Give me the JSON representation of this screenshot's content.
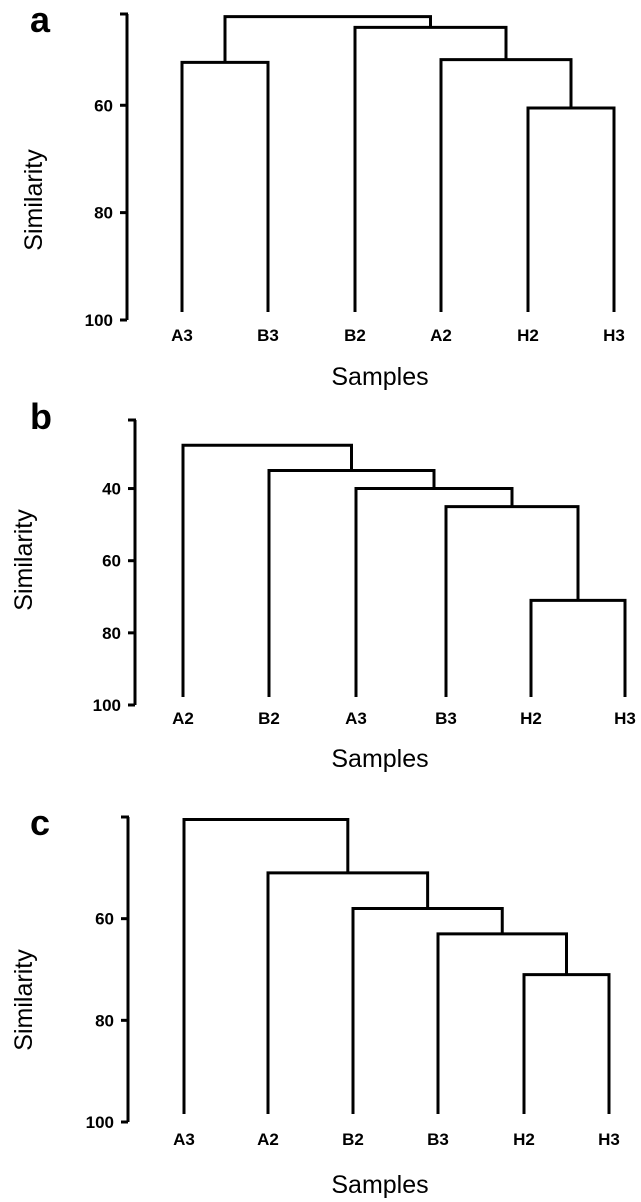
{
  "chart_data": [
    {
      "type": "dendrogram",
      "panel_label": "a",
      "xlabel": "Samples",
      "ylabel": "Similarity",
      "y_ticks": [
        "60",
        "80",
        "100"
      ],
      "y_tick_values": [
        60,
        80,
        100
      ],
      "ylim": [
        43,
        100
      ],
      "leaves": [
        "A3",
        "B3",
        "B2",
        "A2",
        "H2",
        "H3"
      ],
      "merges": [
        {
          "left": "H2",
          "right": "H3",
          "similarity": 60.5
        },
        {
          "left": "A2",
          "right": "H2-H3",
          "similarity": 51.5
        },
        {
          "left": "B2",
          "right": "A2-H2-H3",
          "similarity": 45.5
        },
        {
          "left": "A3",
          "right": "B3",
          "similarity": 52
        },
        {
          "left": "A3-B3",
          "right": "B2-A2-H2-H3",
          "similarity": 43.5
        }
      ]
    },
    {
      "type": "dendrogram",
      "panel_label": "b",
      "xlabel": "Samples",
      "ylabel": "Similarity",
      "y_ticks": [
        "40",
        "60",
        "80",
        "100"
      ],
      "y_tick_values": [
        40,
        60,
        80,
        100
      ],
      "ylim": [
        21,
        100
      ],
      "leaves": [
        "A2",
        "B2",
        "A3",
        "B3",
        "H2",
        "H3"
      ],
      "merges": [
        {
          "left": "H2",
          "right": "H3",
          "similarity": 71
        },
        {
          "left": "B3",
          "right": "H2-H3",
          "similarity": 45
        },
        {
          "left": "A3",
          "right": "B3-H2-H3",
          "similarity": 40
        },
        {
          "left": "B2",
          "right": "A3-B3-H2-H3",
          "similarity": 35
        },
        {
          "left": "A2",
          "right": "B2-A3-B3-H2-H3",
          "similarity": 28
        }
      ]
    },
    {
      "type": "dendrogram",
      "panel_label": "c",
      "xlabel": "Samples",
      "ylabel": "Similarity",
      "y_ticks": [
        "60",
        "80",
        "100"
      ],
      "y_tick_values": [
        60,
        80,
        100
      ],
      "ylim": [
        40,
        100
      ],
      "leaves": [
        "A3",
        "A2",
        "B2",
        "B3",
        "H2",
        "H3"
      ],
      "merges": [
        {
          "left": "H2",
          "right": "H3",
          "similarity": 71
        },
        {
          "left": "B3",
          "right": "H2-H3",
          "similarity": 63
        },
        {
          "left": "B2",
          "right": "B3-H2-H3",
          "similarity": 58
        },
        {
          "left": "A2",
          "right": "B2-B3-H2-H3",
          "similarity": 51
        },
        {
          "left": "A3",
          "right": "A2-B2-B3-H2-H3",
          "similarity": 40.5
        }
      ]
    }
  ]
}
